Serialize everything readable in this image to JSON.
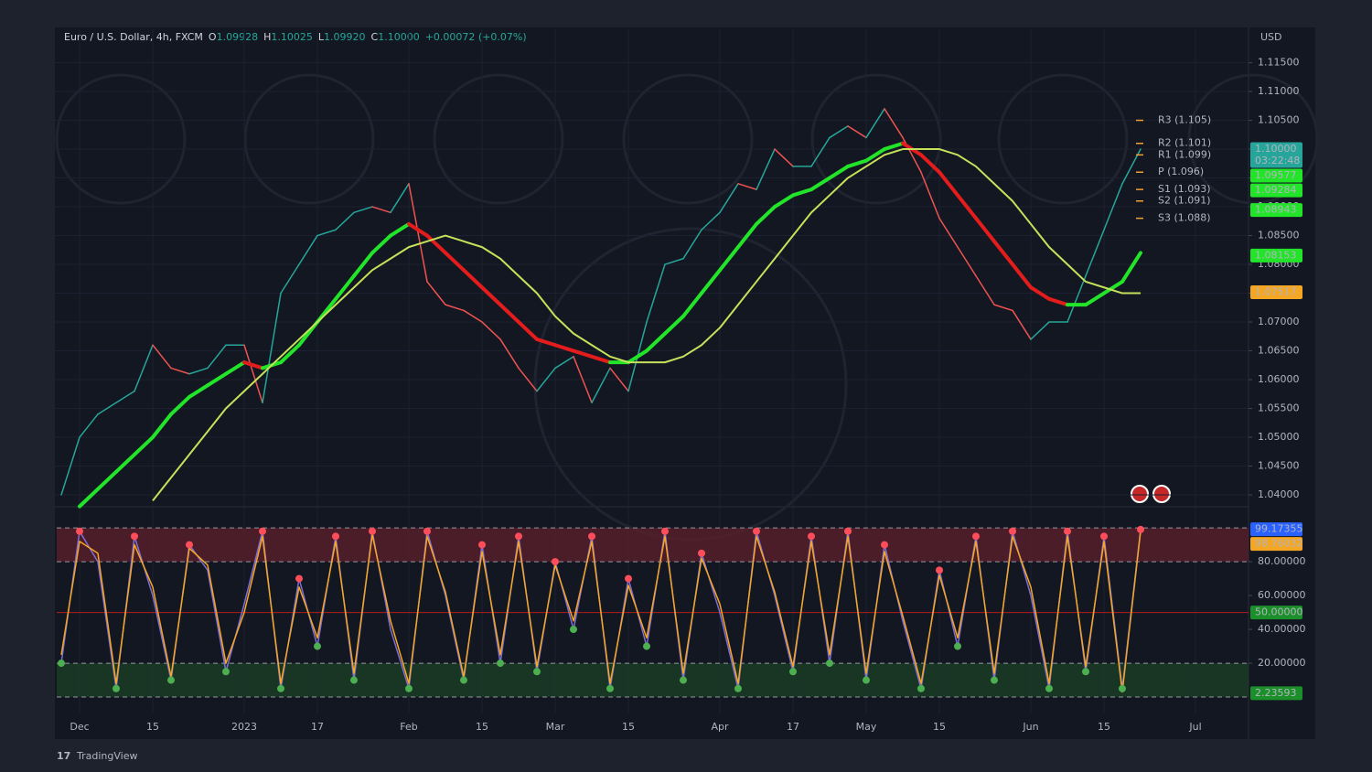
{
  "header": {
    "symbol": "Euro / U.S. Dollar, 4h, FXCM",
    "o_label": "O",
    "open": "1.09928",
    "h_label": "H",
    "high": "1.10025",
    "l_label": "L",
    "low": "1.09920",
    "c_label": "C",
    "close": "1.10000",
    "change": "+0.00072 (+0.07%)"
  },
  "currency": "USD",
  "brand": "TradingView",
  "chart_data": [
    {
      "type": "line",
      "categories": [
        null,
        "Dec",
        null,
        null,
        null,
        "15",
        null,
        null,
        null,
        null,
        "2023",
        null,
        null,
        null,
        "17",
        null,
        null,
        null,
        null,
        "Feb",
        null,
        null,
        null,
        "15",
        null,
        null,
        null,
        "Mar",
        null,
        null,
        null,
        "15",
        null,
        null,
        null,
        null,
        "Apr",
        null,
        null,
        null,
        "17",
        null,
        null,
        null,
        "May",
        null,
        null,
        null,
        "15",
        null,
        null,
        null,
        null,
        "Jun",
        null,
        null,
        null,
        "15",
        null,
        null,
        null,
        null,
        "Jul"
      ],
      "series": [
        {
          "color": "#9aa0a6",
          "up_color": "#26a69a",
          "down_color": "#ef5350",
          "values": [
            1.04,
            1.05,
            1.054,
            1.056,
            1.058,
            1.066,
            1.062,
            1.061,
            1.062,
            1.066,
            1.066,
            1.056,
            1.075,
            1.08,
            1.085,
            1.086,
            1.089,
            1.09,
            1.089,
            1.094,
            1.077,
            1.073,
            1.072,
            1.07,
            1.067,
            1.062,
            1.058,
            1.062,
            1.064,
            1.056,
            1.062,
            1.058,
            1.07,
            1.08,
            1.081,
            1.086,
            1.089,
            1.094,
            1.093,
            1.1,
            1.097,
            1.097,
            1.102,
            1.104,
            1.102,
            1.107,
            1.102,
            1.096,
            1.088,
            1.083,
            1.078,
            1.073,
            1.072,
            1.067,
            1.07,
            1.07,
            1.078,
            1.086,
            1.094,
            1.1,
            null,
            null,
            null
          ]
        },
        {
          "color": "#22e52a",
          "up_color": "#22e52a",
          "down_color": "#e51c1c",
          "values": [
            null,
            1.038,
            1.041,
            1.044,
            1.047,
            1.05,
            1.054,
            1.057,
            1.059,
            1.061,
            1.063,
            1.062,
            1.063,
            1.066,
            1.07,
            1.074,
            1.078,
            1.082,
            1.085,
            1.087,
            1.085,
            1.082,
            1.079,
            1.076,
            1.073,
            1.07,
            1.067,
            1.066,
            1.065,
            1.064,
            1.063,
            1.063,
            1.065,
            1.068,
            1.071,
            1.075,
            1.079,
            1.083,
            1.087,
            1.09,
            1.092,
            1.093,
            1.095,
            1.097,
            1.098,
            1.1,
            1.101,
            1.099,
            1.096,
            1.092,
            1.088,
            1.084,
            1.08,
            1.076,
            1.074,
            1.073,
            1.073,
            1.075,
            1.077,
            1.082,
            null,
            null,
            null
          ]
        },
        {
          "color": "#c6e25a",
          "values": [
            null,
            null,
            null,
            null,
            null,
            1.039,
            1.043,
            1.047,
            1.051,
            1.055,
            1.058,
            1.061,
            1.064,
            1.067,
            1.07,
            1.073,
            1.076,
            1.079,
            1.081,
            1.083,
            1.084,
            1.085,
            1.084,
            1.083,
            1.081,
            1.078,
            1.075,
            1.071,
            1.068,
            1.066,
            1.064,
            1.063,
            1.063,
            1.063,
            1.064,
            1.066,
            1.069,
            1.073,
            1.077,
            1.081,
            1.085,
            1.089,
            1.092,
            1.095,
            1.097,
            1.099,
            1.1,
            1.1,
            1.1,
            1.099,
            1.097,
            1.094,
            1.091,
            1.087,
            1.083,
            1.08,
            1.077,
            1.076,
            1.075,
            1.075,
            null,
            null,
            null
          ]
        }
      ],
      "ylim": [
        1.0381,
        1.1208
      ],
      "yticks": [
        {
          "value": 1.04,
          "label": "1.04000"
        },
        {
          "value": 1.045,
          "label": "1.04500"
        },
        {
          "value": 1.05,
          "label": "1.05000"
        },
        {
          "value": 1.055,
          "label": "1.05500"
        },
        {
          "value": 1.06,
          "label": "1.06000"
        },
        {
          "value": 1.065,
          "label": "1.06500"
        },
        {
          "value": 1.07,
          "label": "1.07000"
        },
        {
          "value": 1.075,
          "label": "1.07500"
        },
        {
          "value": 1.08,
          "label": "1.08000"
        },
        {
          "value": 1.085,
          "label": "1.08500"
        },
        {
          "value": 1.09,
          "label": "1.09000"
        },
        {
          "value": 1.095,
          "label": "1.09500"
        },
        {
          "value": 1.1,
          "label": "1.10000"
        },
        {
          "value": 1.105,
          "label": "1.10500"
        },
        {
          "value": 1.11,
          "label": "1.11000"
        },
        {
          "value": 1.115,
          "label": "1.11500"
        }
      ],
      "grid": true,
      "pivot_color": "#f0a030",
      "pivots": [
        {
          "label": "R3 (1.105)",
          "value": 1.105
        },
        {
          "label": "R2 (1.101)",
          "value": 1.101
        },
        {
          "label": "R1 (1.099)",
          "value": 1.099
        },
        {
          "label": "P (1.096)",
          "value": 1.096
        },
        {
          "label": "S1 (1.093)",
          "value": 1.093
        },
        {
          "label": "S2 (1.091)",
          "value": 1.091
        },
        {
          "label": "S3 (1.088)",
          "value": 1.088
        }
      ],
      "price_tags": [
        {
          "value": 1.1,
          "label": "1.10000",
          "sub": "03:22:48",
          "color": "#26a69a"
        },
        {
          "value": 1.09577,
          "label": "1.09577",
          "color": "#22e52a"
        },
        {
          "value": 1.09284,
          "label": "1.09284",
          "color": "#22e52a"
        },
        {
          "value": 1.08943,
          "label": "1.08943",
          "color": "#22e52a"
        },
        {
          "value": 1.08153,
          "label": "1.08153",
          "color": "#22e52a"
        },
        {
          "value": 1.07517,
          "label": "1.07517",
          "color": "#f5a623"
        }
      ]
    },
    {
      "type": "line",
      "series": [
        {
          "color": "#7e6fd9",
          "values": [
            20,
            98,
            80,
            5,
            95,
            60,
            10,
            90,
            75,
            15,
            55,
            98,
            5,
            70,
            30,
            95,
            10,
            98,
            40,
            5,
            98,
            60,
            10,
            90,
            20,
            95,
            15,
            80,
            40,
            95,
            5,
            70,
            30,
            98,
            10,
            85,
            50,
            5,
            98,
            60,
            15,
            95,
            20,
            98,
            10,
            90,
            45,
            5,
            75,
            30,
            95,
            10,
            98,
            60,
            5,
            98,
            15,
            95,
            5,
            99,
            null,
            null,
            null
          ]
        },
        {
          "color": "#f5a623",
          "values": [
            25,
            92,
            85,
            8,
            90,
            65,
            12,
            88,
            78,
            20,
            50,
            95,
            8,
            65,
            35,
            92,
            14,
            96,
            45,
            8,
            95,
            62,
            12,
            86,
            25,
            92,
            18,
            78,
            45,
            92,
            8,
            66,
            35,
            95,
            14,
            82,
            55,
            8,
            95,
            62,
            18,
            92,
            25,
            95,
            14,
            86,
            48,
            8,
            72,
            35,
            92,
            14,
            95,
            65,
            8,
            95,
            18,
            92,
            3,
            98,
            null,
            null,
            null
          ]
        }
      ],
      "ylim": [
        -9.7,
        111.4
      ],
      "yticks": [
        {
          "value": 20,
          "label": "20.00000"
        },
        {
          "value": 40,
          "label": "40.00000"
        },
        {
          "value": 60,
          "label": "60.00000"
        },
        {
          "value": 80,
          "label": "80.00000"
        }
      ],
      "bands": [
        {
          "range": [
            80,
            100
          ],
          "color": "#5a1f2a"
        },
        {
          "range": [
            0,
            20
          ],
          "color": "#1b3d26"
        }
      ],
      "midline": 50,
      "price_tags": [
        {
          "value": 99.17355,
          "label": "99.17355",
          "color": "#2962ff"
        },
        {
          "value": 98.76032,
          "label": "98.76032",
          "color": "#f5a623"
        },
        {
          "value": 50,
          "label": "50.00000",
          "color": "#1b8f2a"
        },
        {
          "value": 2.23593,
          "label": "2.23593",
          "color": "#1b8f2a"
        }
      ]
    }
  ]
}
